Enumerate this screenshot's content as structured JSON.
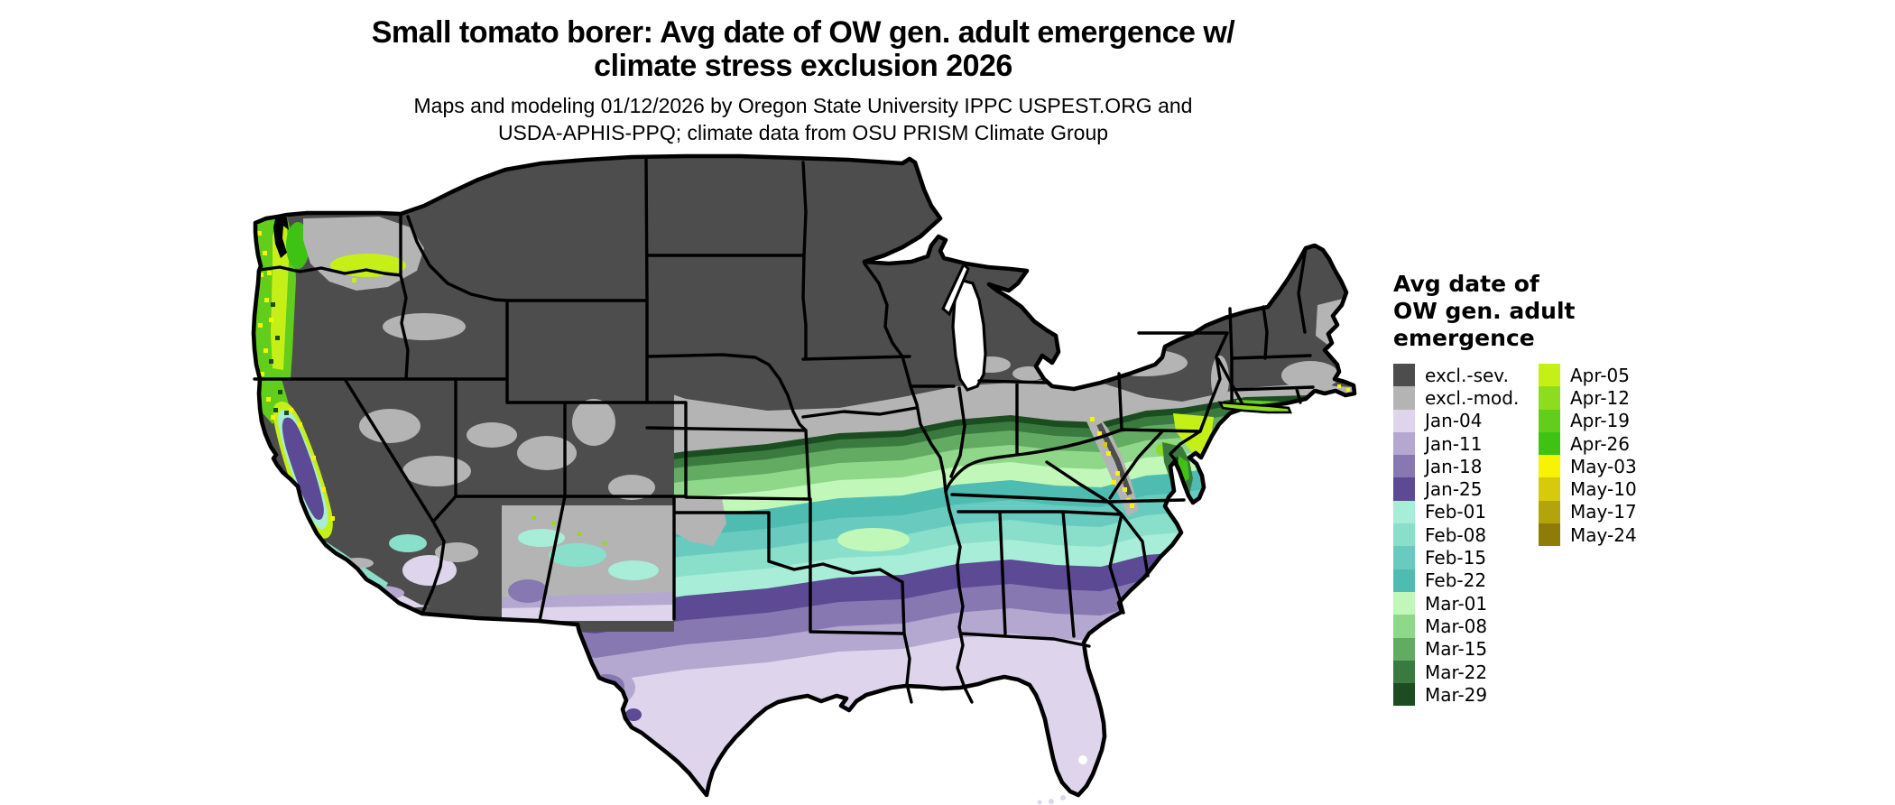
{
  "title": {
    "line1": "Small tomato borer: Avg date of OW gen. adult emergence w/",
    "line2": "climate stress exclusion 2026"
  },
  "subtitle": {
    "line1": "Maps and modeling 01/12/2026 by Oregon State University IPPC USPEST.ORG and",
    "line2": "USDA-APHIS-PPQ; climate data from OSU PRISM Climate Group"
  },
  "legend": {
    "title_lines": [
      "Avg date of",
      "OW gen. adult",
      "emergence"
    ],
    "left": [
      {
        "label": "excl.-sev.",
        "key": "excl_sev"
      },
      {
        "label": "excl.-mod.",
        "key": "excl_mod"
      },
      {
        "label": "Jan-04",
        "key": "jan04"
      },
      {
        "label": "Jan-11",
        "key": "jan11"
      },
      {
        "label": "Jan-18",
        "key": "jan18"
      },
      {
        "label": "Jan-25",
        "key": "jan25"
      },
      {
        "label": "Feb-01",
        "key": "feb01"
      },
      {
        "label": "Feb-08",
        "key": "feb08"
      },
      {
        "label": "Feb-15",
        "key": "feb15"
      },
      {
        "label": "Feb-22",
        "key": "feb22"
      },
      {
        "label": "Mar-01",
        "key": "mar01"
      },
      {
        "label": "Mar-08",
        "key": "mar08"
      },
      {
        "label": "Mar-15",
        "key": "mar15"
      },
      {
        "label": "Mar-22",
        "key": "mar22"
      },
      {
        "label": "Mar-29",
        "key": "mar29"
      }
    ],
    "right": [
      {
        "label": "Apr-05",
        "key": "apr05"
      },
      {
        "label": "Apr-12",
        "key": "apr12"
      },
      {
        "label": "Apr-19",
        "key": "apr19"
      },
      {
        "label": "Apr-26",
        "key": "apr26"
      },
      {
        "label": "May-03",
        "key": "may03"
      },
      {
        "label": "May-10",
        "key": "may10"
      },
      {
        "label": "May-17",
        "key": "may17"
      },
      {
        "label": "May-24",
        "key": "may24"
      }
    ]
  },
  "colors": {
    "excl_sev": "#4d4d4d",
    "excl_mod": "#b4b4b4",
    "jan04": "#ded5ec",
    "jan11": "#b4a7d0",
    "jan18": "#8878b1",
    "jan25": "#5c4a95",
    "feb01": "#a7edd7",
    "feb08": "#89dfc9",
    "feb15": "#69cbc0",
    "feb22": "#4fbcb1",
    "mar01": "#c1f8ba",
    "mar08": "#8fd889",
    "mar15": "#63aa63",
    "mar22": "#3a7a3e",
    "mar29": "#1b4d20",
    "apr05": "#c5f017",
    "apr12": "#8edc1f",
    "apr19": "#63cd1c",
    "apr26": "#3ec214",
    "may03": "#f7f303",
    "may10": "#d7c90b",
    "may17": "#b2a40a",
    "may24": "#8d7c07",
    "water": "#ffffff",
    "border": "#000000",
    "background": "#ffffff"
  },
  "map": {
    "region": "Contiguous United States choropleth",
    "pattern_south_to_north": [
      "Jan-04 lavender across Florida, Gulf Coast, south Texas, south Georgia, coastal Louisiana",
      "Jan-11 / Jan-18 / Jan-25 purple bands across central Texas, the Deep South and Carolina coast",
      "Feb-01 to Feb-22 teal bands across Oklahoma, Arkansas, Tennessee, north Alabama, coastal Virginia",
      "Mar-01 to Mar-29 green bands across Missouri, Kentucky, southern Midwest, Virginia piedmont",
      "excl.-mod. light gray band across Kansas, Iowa, Illinois, Ohio, Pennsylvania",
      "excl.-sev. dark gray over northern plains, Rockies, Great Basin, upper Midwest and New England"
    ],
    "west_features": [
      "April green / May yellow strip along Pacific Northwest coast and Willamette Valley",
      "Jan-25 purple Central Valley of California ringed by Feb teal and Apr green",
      "Jan-04 lavender southern California and southern Arizona / New Mexico lowlands",
      "dark green Delmarva peninsula with Apr-05 yellow-green New Jersey"
    ]
  }
}
